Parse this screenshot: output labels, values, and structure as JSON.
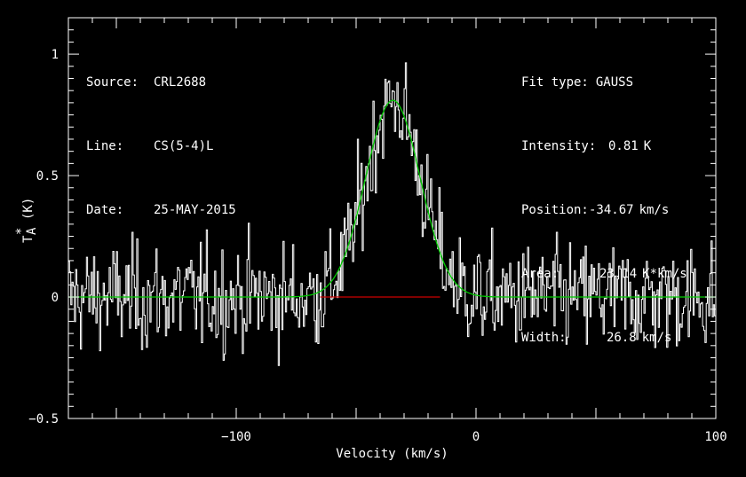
{
  "header": {
    "source_label": "Source:",
    "source_value": "CRL2688",
    "line_label": "Line:",
    "line_value": "CS(5-4)L",
    "date_label": "Date:",
    "date_value": "25-MAY-2015"
  },
  "fit": {
    "type_label": "Fit type:",
    "type_value": "GAUSS",
    "intensity_label": "Intensity:",
    "intensity_value": "0.81",
    "intensity_unit": "K",
    "position_label": "Position:",
    "position_value": "-34.67",
    "position_unit": "km/s",
    "area_label": "Area:",
    "area_value": "23.14",
    "area_unit": "K*km/s",
    "width_label": "Width:",
    "width_value": "26.8",
    "width_unit": "km/s"
  },
  "colors": {
    "background": "#000000",
    "spectrum": "#ffffff",
    "fit": "#00cc00",
    "baseline": "#cc0000"
  },
  "chart_data": {
    "type": "line",
    "title": "",
    "xlabel": "Velocity (km/s)",
    "ylabel_main": "T",
    "ylabel_sub": "A",
    "ylabel_sup": "*",
    "ylabel_unit": "(K)",
    "xlim": [
      -170,
      100
    ],
    "ylim": [
      -0.5,
      1.15
    ],
    "xticks": [
      -100,
      0,
      100
    ],
    "xtick_labels": [
      "−100",
      "0",
      "100"
    ],
    "yticks": [
      -0.5,
      0,
      0.5,
      1
    ],
    "ytick_labels": [
      "−0.5",
      "0",
      "0.5",
      "1"
    ],
    "grid": false,
    "series": [
      {
        "kind": "spectrum",
        "channel_width_kms": 0.5,
        "noise_rms_K": 0.11
      },
      {
        "kind": "gaussian_fit",
        "peak_K": 0.81,
        "center_kms": -34.67,
        "fwhm_kms": 26.8
      },
      {
        "kind": "baseline_window",
        "x_range_kms": [
          -65,
          -15
        ],
        "y": 0
      }
    ]
  }
}
